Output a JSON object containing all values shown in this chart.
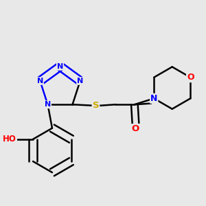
{
  "background_color": "#e8e8e8",
  "bond_color": "#000000",
  "atom_colors": {
    "N": "#0000ff",
    "O": "#ff0000",
    "S": "#ccaa00",
    "C": "#000000"
  },
  "figsize": [
    3.0,
    3.0
  ],
  "dpi": 100
}
